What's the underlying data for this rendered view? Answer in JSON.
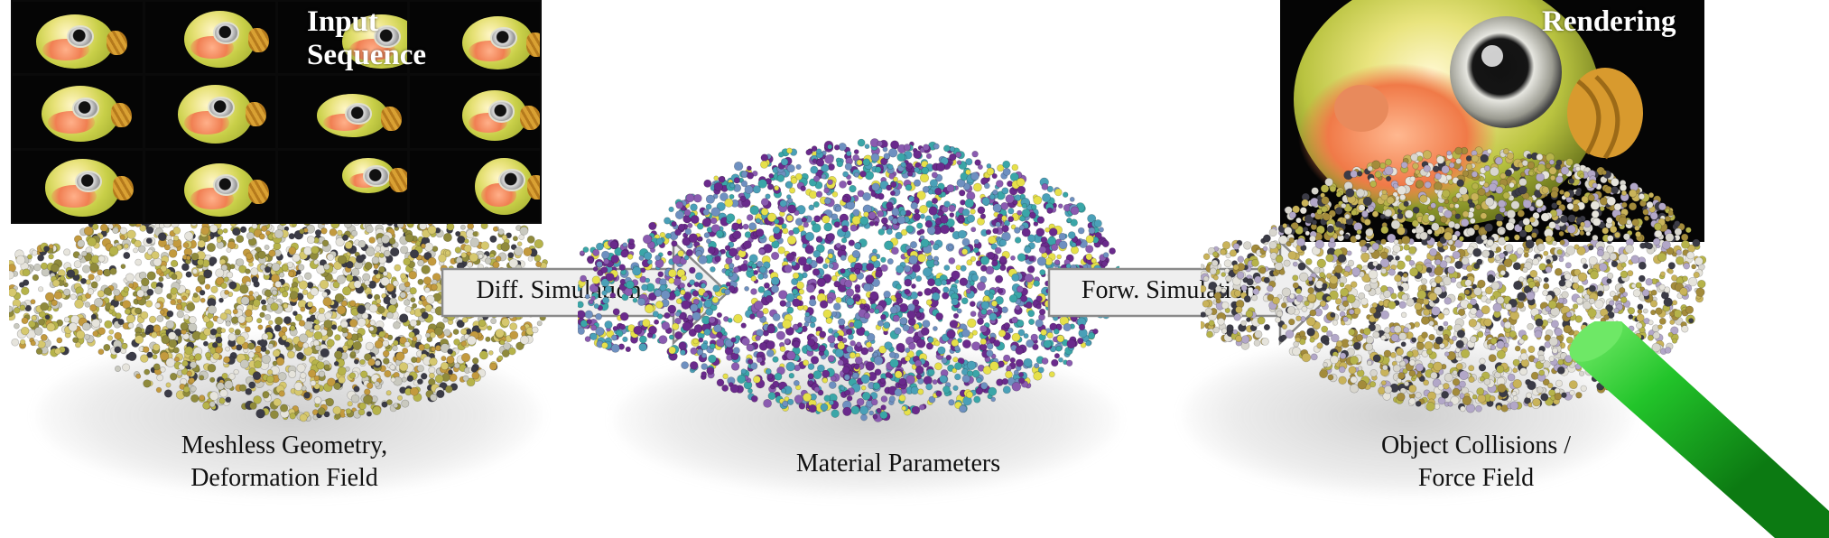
{
  "input_panel": {
    "title": "Input Sequence"
  },
  "render_panel": {
    "title": "Rendering"
  },
  "arrows": {
    "diff_sim": "Diff. Simulation",
    "forw_sim": "Forw. Simulation"
  },
  "captions": {
    "geometry_line1": "Meshless Geometry,",
    "geometry_line2": "Deformation Field",
    "material": "Material Parameters",
    "collision_line1": "Object Collisions /",
    "collision_line2": "Force Field"
  },
  "colors": {
    "arrow_fill": "#efefef",
    "arrow_stroke": "#8a8a8a",
    "stick_green": "#22c42a",
    "material_purple": "#6a2a8c",
    "material_teal": "#3aa6a8",
    "material_yellow": "#e6e04a",
    "geometry_olive": "#b6b34a",
    "geometry_white": "#e6e4dc",
    "geometry_dark": "#3b3b46"
  }
}
